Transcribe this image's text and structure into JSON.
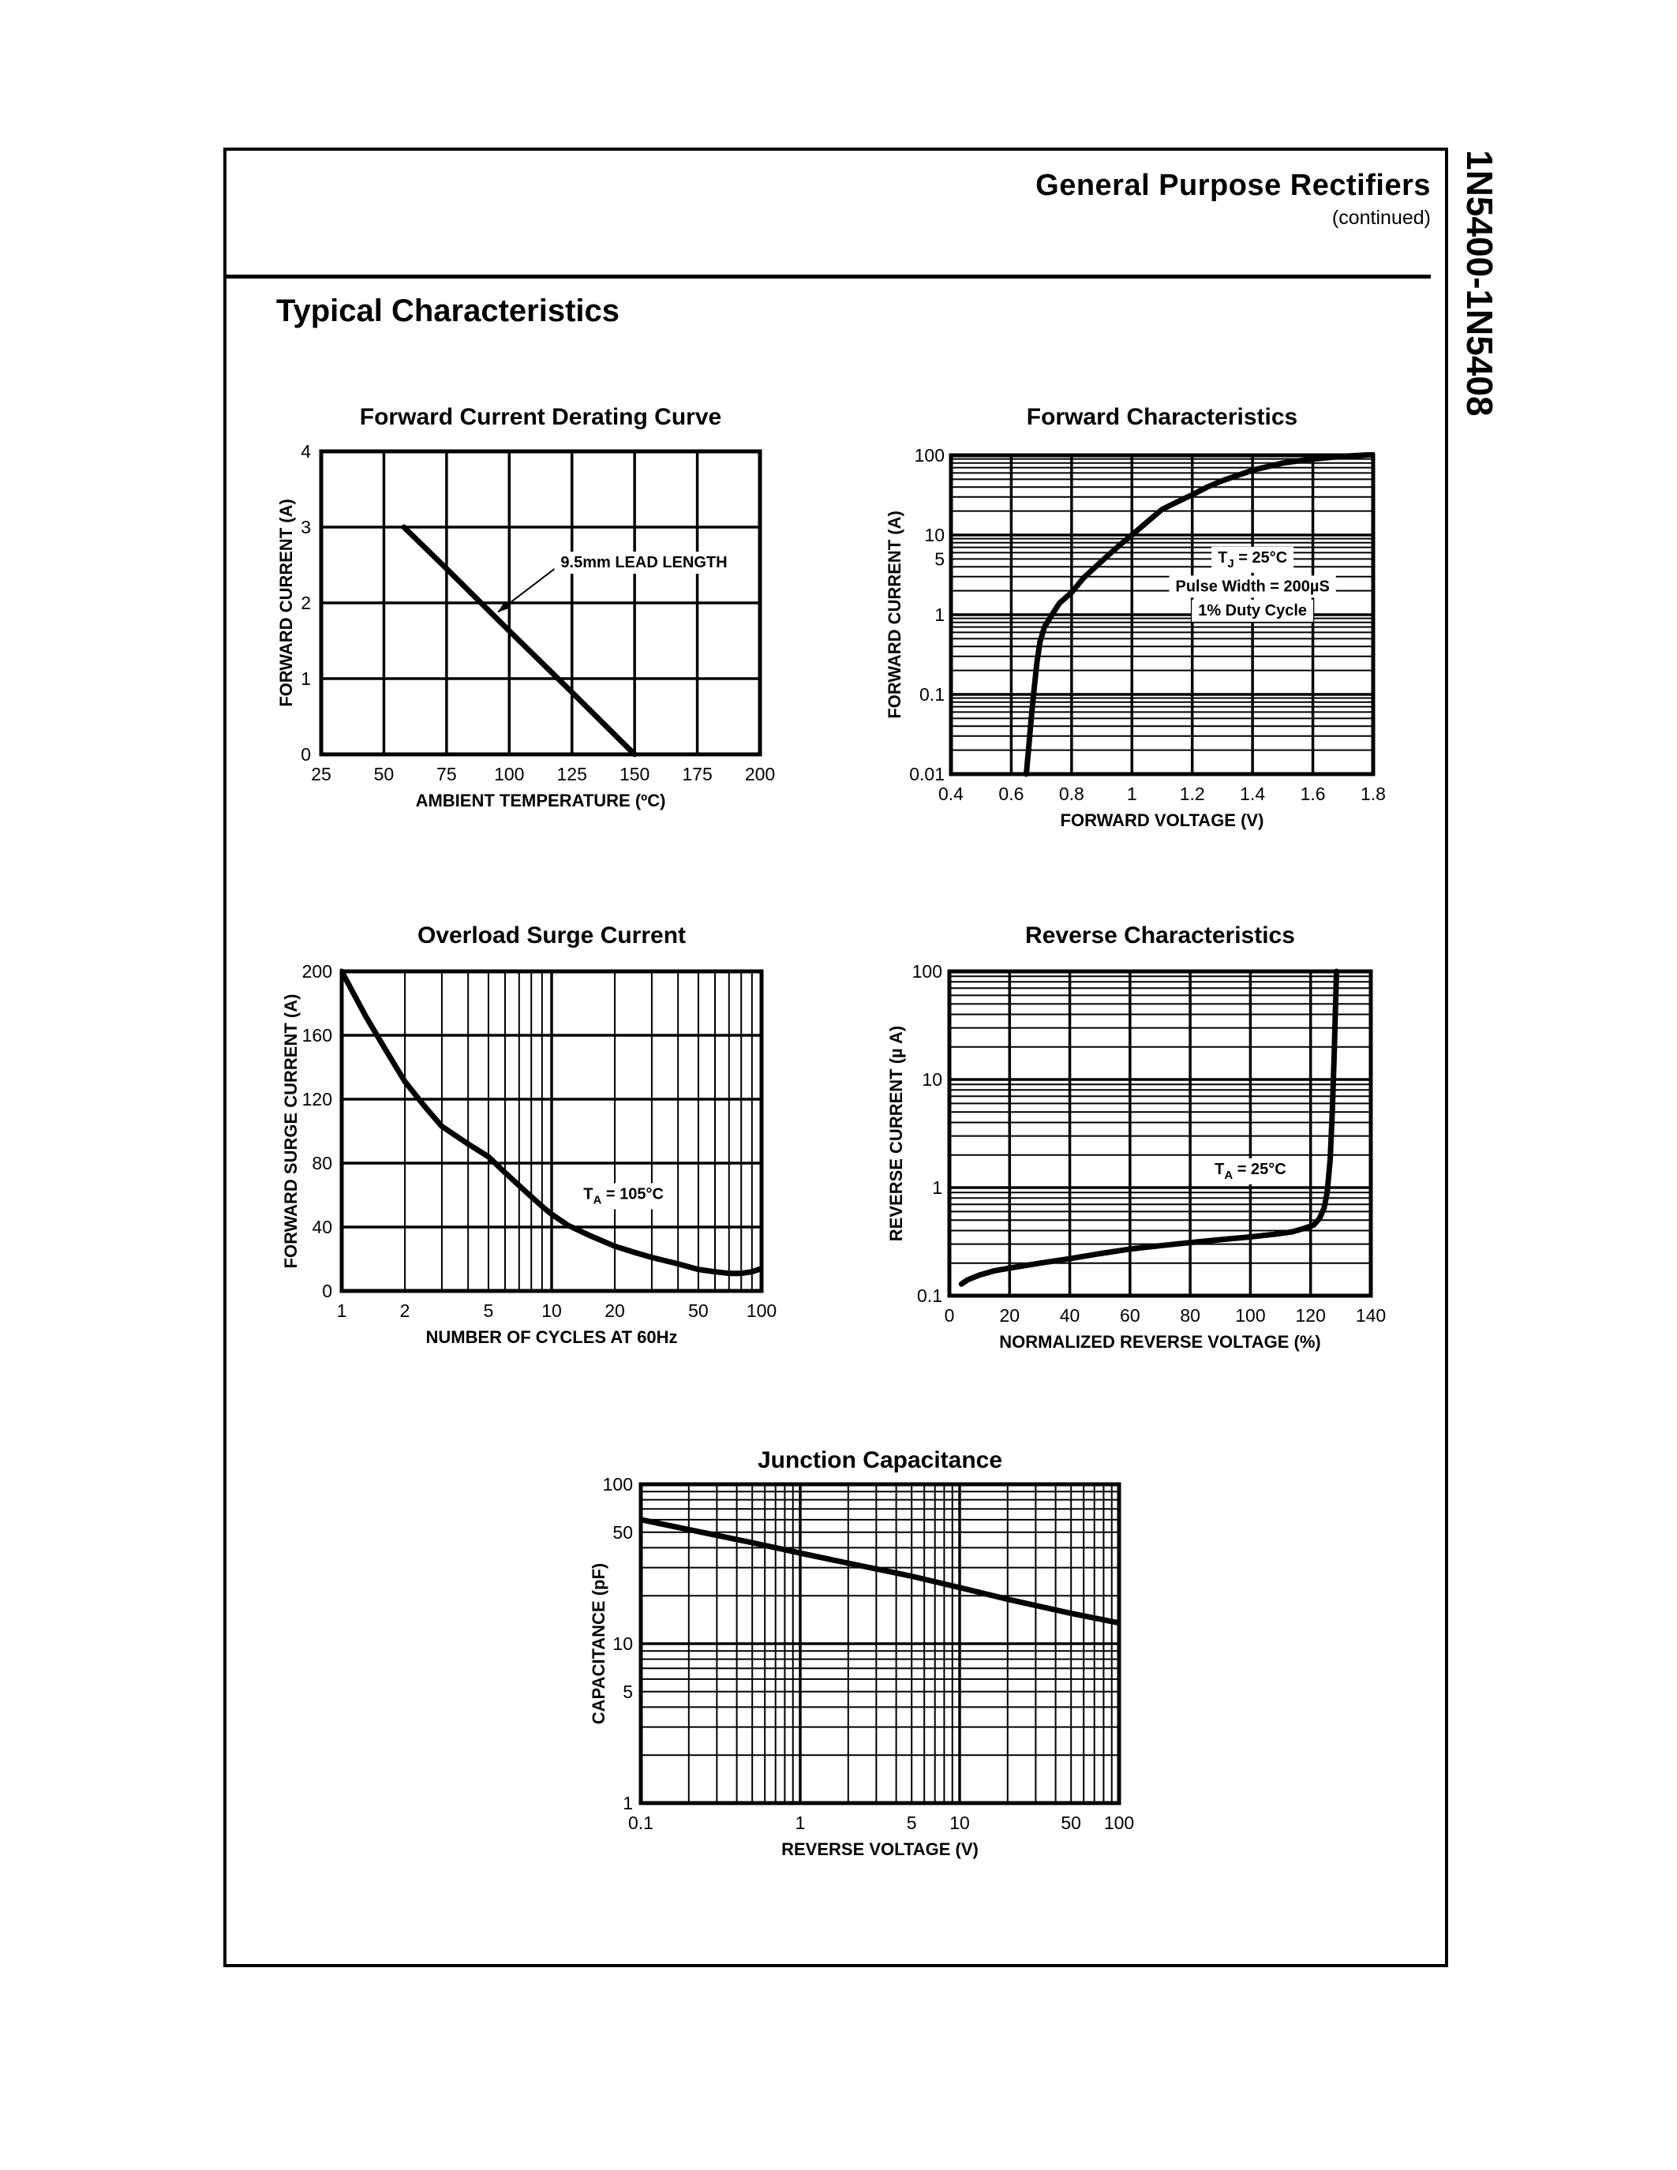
{
  "page": {
    "title": "General Purpose Rectifiers",
    "subtitle": "(continued)",
    "side_label": "1N5400-1N5408",
    "section_heading": "Typical Characteristics"
  },
  "chart_data": [
    {
      "id": "derating",
      "type": "line",
      "title": "Forward Current Derating Curve",
      "xlabel": "AMBIENT TEMPERATURE (ºC)",
      "ylabel": "FORWARD CURRENT (A)",
      "x_scale": "linear",
      "x_min": 25,
      "x_max": 200,
      "x_ticks": [
        25,
        50,
        75,
        100,
        125,
        150,
        175,
        200
      ],
      "x_tick_labels": [
        "25",
        "50",
        "75",
        "100",
        "125",
        "150",
        "175",
        "200"
      ],
      "y_scale": "linear",
      "y_min": 0,
      "y_max": 4,
      "y_ticks": [
        0,
        1,
        2,
        3,
        4
      ],
      "y_tick_labels": [
        "0",
        "1",
        "2",
        "3",
        "4"
      ],
      "grid": "major",
      "series": [
        {
          "name": "derating-line",
          "points": [
            [
              58,
              3.0
            ],
            [
              75,
              2.45
            ],
            [
              100,
              1.63
            ],
            [
              125,
              0.82
            ],
            [
              150,
              0
            ]
          ]
        }
      ],
      "annotations": [
        {
          "segments": [
            {
              "t": "9.5mm LEAD LENGTH"
            }
          ],
          "x": 120.5,
          "y": 2.54,
          "anchor": "start",
          "bg": true,
          "arrow": {
            "from": [
              118.5,
              2.46
            ],
            "to": [
              95.5,
              1.88
            ]
          }
        }
      ]
    },
    {
      "id": "forward",
      "type": "line",
      "title": "Forward Characteristics",
      "xlabel": "FORWARD VOLTAGE (V)",
      "ylabel": "FORWARD CURRENT (A)",
      "x_scale": "linear",
      "x_min": 0.4,
      "x_max": 1.8,
      "x_ticks": [
        0.4,
        0.6,
        0.8,
        1.0,
        1.2,
        1.4,
        1.6,
        1.8
      ],
      "x_tick_labels": [
        "0.4",
        "0.6",
        "0.8",
        "1",
        "1.2",
        "1.4",
        "1.6",
        "1.8"
      ],
      "y_scale": "log",
      "y_min": 0.01,
      "y_max": 100,
      "y_ticks": [
        100,
        10,
        5,
        1,
        0.1,
        0.01
      ],
      "y_tick_labels": [
        "100",
        "10",
        "5",
        "1",
        "0.1",
        "0.01"
      ],
      "grid": "log",
      "series": [
        {
          "name": "forward-voltage-current",
          "points": [
            [
              0.65,
              0.01
            ],
            [
              0.658,
              0.022
            ],
            [
              0.666,
              0.05
            ],
            [
              0.675,
              0.11
            ],
            [
              0.685,
              0.25
            ],
            [
              0.695,
              0.45
            ],
            [
              0.71,
              0.7
            ],
            [
              0.735,
              1.0
            ],
            [
              0.76,
              1.4
            ],
            [
              0.8,
              1.9
            ],
            [
              0.84,
              2.9
            ],
            [
              0.88,
              4.0
            ],
            [
              0.92,
              5.5
            ],
            [
              0.96,
              7.5
            ],
            [
              1.0,
              10
            ],
            [
              1.05,
              14.5
            ],
            [
              1.1,
              21
            ],
            [
              1.15,
              26
            ],
            [
              1.2,
              32
            ],
            [
              1.25,
              40
            ],
            [
              1.3,
              48
            ],
            [
              1.4,
              65
            ],
            [
              1.5,
              80
            ],
            [
              1.6,
              90
            ],
            [
              1.7,
              97
            ],
            [
              1.8,
              102
            ]
          ]
        }
      ],
      "annotations": [
        {
          "segments": [
            {
              "t": "T"
            },
            {
              "t": "J",
              "v": "sub"
            },
            {
              "t": " = 25°C"
            }
          ],
          "x": 1.4,
          "y": 5.3,
          "anchor": "middle",
          "bg": true
        },
        {
          "segments": [
            {
              "t": "Pulse Width = 200µS"
            }
          ],
          "x": 1.4,
          "y": 2.3,
          "anchor": "middle",
          "bg": true
        },
        {
          "segments": [
            {
              "t": "1% Duty Cycle"
            }
          ],
          "x": 1.4,
          "y": 1.15,
          "anchor": "middle",
          "bg": true
        }
      ]
    },
    {
      "id": "surge",
      "type": "line",
      "title": "Overload Surge Current",
      "xlabel": "NUMBER OF CYCLES AT 60Hz",
      "ylabel": "FORWARD SURGE CURRENT (A)",
      "x_scale": "log",
      "x_min": 1,
      "x_max": 100,
      "x_ticks": [
        1,
        2,
        5,
        10,
        20,
        50,
        100
      ],
      "x_tick_labels": [
        "1",
        "2",
        "5",
        "10",
        "20",
        "50",
        "100"
      ],
      "y_scale": "linear",
      "y_min": 0,
      "y_max": 200,
      "y_ticks": [
        0,
        40,
        80,
        120,
        160,
        200
      ],
      "y_tick_labels": [
        "0",
        "40",
        "80",
        "120",
        "160",
        "200"
      ],
      "grid": "log",
      "series": [
        {
          "name": "surge-current",
          "points": [
            [
              1,
              200
            ],
            [
              1.3,
              172
            ],
            [
              1.6,
              152
            ],
            [
              2,
              131
            ],
            [
              2.5,
              115
            ],
            [
              3,
              103
            ],
            [
              4,
              92
            ],
            [
              5,
              84
            ],
            [
              6,
              74
            ],
            [
              7,
              66
            ],
            [
              8,
              59
            ],
            [
              9,
              53
            ],
            [
              10,
              48
            ],
            [
              12,
              41
            ],
            [
              15,
              35
            ],
            [
              20,
              28
            ],
            [
              25,
              24
            ],
            [
              30,
              21
            ],
            [
              40,
              17
            ],
            [
              50,
              13.5
            ],
            [
              60,
              12
            ],
            [
              70,
              11
            ],
            [
              80,
              11
            ],
            [
              90,
              12
            ],
            [
              100,
              14
            ]
          ]
        }
      ],
      "annotations": [
        {
          "segments": [
            {
              "t": "T"
            },
            {
              "t": "A",
              "v": "sub"
            },
            {
              "t": " = 105°C"
            }
          ],
          "x": 22,
          "y": 61,
          "anchor": "middle",
          "bg": true
        }
      ]
    },
    {
      "id": "reverse",
      "type": "line",
      "title": "Reverse Characteristics",
      "xlabel": "NORMALIZED REVERSE VOLTAGE (%)",
      "ylabel": "REVERSE CURRENT (µ A)",
      "x_scale": "linear",
      "x_min": 0,
      "x_max": 140,
      "x_ticks": [
        0,
        20,
        40,
        60,
        80,
        100,
        120,
        140
      ],
      "x_tick_labels": [
        "0",
        "20",
        "40",
        "60",
        "80",
        "100",
        "120",
        "140"
      ],
      "y_scale": "log",
      "y_min": 0.1,
      "y_max": 100,
      "y_ticks": [
        100,
        10,
        1,
        0.1
      ],
      "y_tick_labels": [
        "100",
        "10",
        "1",
        "0.1"
      ],
      "grid": "log",
      "series": [
        {
          "name": "reverse-leakage",
          "points": [
            [
              4,
              0.128
            ],
            [
              6,
              0.14
            ],
            [
              10,
              0.155
            ],
            [
              15,
              0.17
            ],
            [
              20,
              0.18
            ],
            [
              30,
              0.2
            ],
            [
              40,
              0.22
            ],
            [
              50,
              0.245
            ],
            [
              60,
              0.27
            ],
            [
              70,
              0.29
            ],
            [
              80,
              0.31
            ],
            [
              90,
              0.33
            ],
            [
              100,
              0.35
            ],
            [
              108,
              0.37
            ],
            [
              114,
              0.39
            ],
            [
              118,
              0.42
            ],
            [
              121,
              0.45
            ],
            [
              123,
              0.52
            ],
            [
              124.5,
              0.65
            ],
            [
              125.5,
              0.9
            ],
            [
              126.5,
              1.8
            ],
            [
              127.2,
              5
            ],
            [
              127.8,
              16
            ],
            [
              128.3,
              50
            ],
            [
              128.6,
              100
            ]
          ]
        }
      ],
      "annotations": [
        {
          "segments": [
            {
              "t": "T"
            },
            {
              "t": "A",
              "v": "sub"
            },
            {
              "t": " = 25°C"
            }
          ],
          "x": 100,
          "y": 1.5,
          "anchor": "middle",
          "bg": true
        }
      ]
    },
    {
      "id": "capacitance",
      "type": "line",
      "title": "Junction Capacitance",
      "xlabel": "REVERSE VOLTAGE (V)",
      "ylabel": "CAPACITANCE (pF)",
      "x_scale": "log",
      "x_min": 0.1,
      "x_max": 100,
      "x_ticks": [
        0.1,
        1,
        5,
        10,
        50,
        100
      ],
      "x_tick_labels": [
        "0.1",
        "1",
        "5",
        "10",
        "50",
        "100"
      ],
      "y_scale": "log",
      "y_min": 1,
      "y_max": 100,
      "y_ticks": [
        100,
        50,
        10,
        5,
        1
      ],
      "y_tick_labels": [
        "100",
        "50",
        "10",
        "5",
        "1"
      ],
      "grid": "log",
      "series": [
        {
          "name": "junction-capacitance",
          "points": [
            [
              0.1,
              60
            ],
            [
              0.2,
              52
            ],
            [
              0.5,
              43
            ],
            [
              1,
              37
            ],
            [
              2,
              32
            ],
            [
              5,
              26.5
            ],
            [
              10,
              22.5
            ],
            [
              20,
              19
            ],
            [
              50,
              15.5
            ],
            [
              100,
              13.5
            ]
          ]
        }
      ],
      "annotations": []
    }
  ]
}
